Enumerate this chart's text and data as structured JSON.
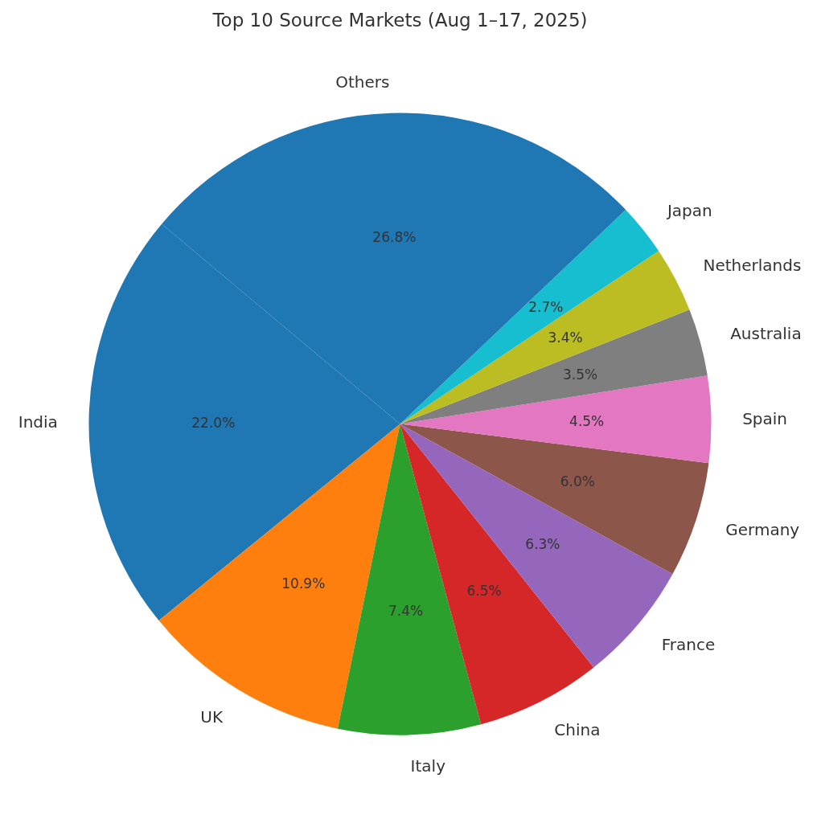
{
  "chart_data": {
    "type": "pie",
    "title": "Top 10 Source Markets (Aug 1–17, 2025)",
    "categories": [
      "India",
      "UK",
      "Italy",
      "China",
      "France",
      "Germany",
      "Spain",
      "Australia",
      "Netherlands",
      "Japan",
      "Others"
    ],
    "values": [
      22.0,
      10.9,
      7.4,
      6.5,
      6.3,
      6.0,
      4.5,
      3.5,
      3.4,
      2.7,
      26.8
    ],
    "colors": [
      "#1f77b4",
      "#ff7f0e",
      "#2ca02c",
      "#d62728",
      "#9467bd",
      "#8c564b",
      "#e377c2",
      "#7f7f7f",
      "#bcbd22",
      "#17becf",
      "#1f77b4"
    ],
    "value_labels": [
      "22.0%",
      "10.9%",
      "7.4%",
      "6.5%",
      "6.3%",
      "6.0%",
      "4.5%",
      "3.5%",
      "3.4%",
      "2.7%",
      "26.8%"
    ]
  }
}
